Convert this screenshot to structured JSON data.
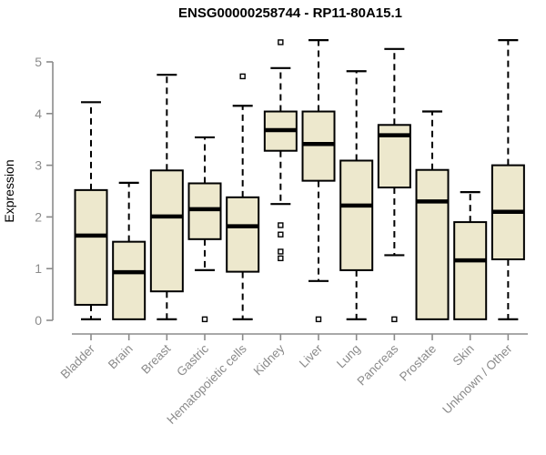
{
  "chart_data": {
    "type": "box",
    "title": "ENSG00000258744 - RP11-80A15.1",
    "ylabel": "Expression",
    "xlabel": "",
    "ylim": [
      0,
      5
    ],
    "yticks": [
      0,
      1,
      2,
      3,
      4,
      5
    ],
    "grid": false,
    "legend": "none",
    "categories": [
      "Bladder",
      "Brain",
      "Breast",
      "Gastric",
      "Hematopoietic cells",
      "Kidney",
      "Liver",
      "Lung",
      "Pancreas",
      "Prostate",
      "Skin",
      "Unknown / Other"
    ],
    "series": [
      {
        "name": "Bladder",
        "slug": "bladder",
        "whisker_low": 0.02,
        "q1": 0.3,
        "median": 1.64,
        "q3": 2.52,
        "whisker_high": 4.22,
        "outliers": []
      },
      {
        "name": "Brain",
        "slug": "brain",
        "whisker_low": 0.02,
        "q1": 0.02,
        "median": 0.93,
        "q3": 1.52,
        "whisker_high": 2.66,
        "outliers": []
      },
      {
        "name": "Breast",
        "slug": "breast",
        "whisker_low": 0.02,
        "q1": 0.56,
        "median": 2.01,
        "q3": 2.9,
        "whisker_high": 4.75,
        "outliers": []
      },
      {
        "name": "Gastric",
        "slug": "gastric",
        "whisker_low": 0.97,
        "q1": 1.57,
        "median": 2.15,
        "q3": 2.65,
        "whisker_high": 3.54,
        "outliers": [
          0.02
        ]
      },
      {
        "name": "Hematopoietic cells",
        "slug": "hematopoietic-cells",
        "whisker_low": 0.02,
        "q1": 0.94,
        "median": 1.82,
        "q3": 2.38,
        "whisker_high": 4.15,
        "outliers": [
          4.72
        ]
      },
      {
        "name": "Kidney",
        "slug": "kidney",
        "whisker_low": 2.25,
        "q1": 3.28,
        "median": 3.68,
        "q3": 4.04,
        "whisker_high": 4.88,
        "outliers": [
          5.38,
          1.84,
          1.66,
          1.33,
          1.2
        ]
      },
      {
        "name": "Liver",
        "slug": "liver",
        "whisker_low": 0.76,
        "q1": 2.7,
        "median": 3.41,
        "q3": 4.04,
        "whisker_high": 5.42,
        "outliers": [
          0.02
        ]
      },
      {
        "name": "Lung",
        "slug": "lung",
        "whisker_low": 0.02,
        "q1": 0.97,
        "median": 2.22,
        "q3": 3.09,
        "whisker_high": 4.82,
        "outliers": []
      },
      {
        "name": "Pancreas",
        "slug": "pancreas",
        "whisker_low": 1.26,
        "q1": 2.57,
        "median": 3.58,
        "q3": 3.78,
        "whisker_high": 5.25,
        "outliers": [
          0.02
        ]
      },
      {
        "name": "Prostate",
        "slug": "prostate",
        "whisker_low": 0.02,
        "q1": 0.02,
        "median": 2.3,
        "q3": 2.91,
        "whisker_high": 4.04,
        "outliers": []
      },
      {
        "name": "Skin",
        "slug": "skin",
        "whisker_low": 0.02,
        "q1": 0.02,
        "median": 1.16,
        "q3": 1.9,
        "whisker_high": 2.48,
        "outliers": []
      },
      {
        "name": "Unknown / Other",
        "slug": "unknown-other",
        "whisker_low": 0.02,
        "q1": 1.18,
        "median": 2.1,
        "q3": 3.0,
        "whisker_high": 5.42,
        "outliers": []
      }
    ],
    "colors": {
      "box_fill": "#EDE8CD",
      "box_border": "#000000",
      "median": "#000000",
      "whisker": "#000000",
      "outlier_stroke": "#000000",
      "outlier_fill": "#ffffff",
      "axis": "#8B8B8B",
      "tick_label": "#8B8B8B",
      "title": "#000000",
      "background": "#ffffff"
    }
  }
}
